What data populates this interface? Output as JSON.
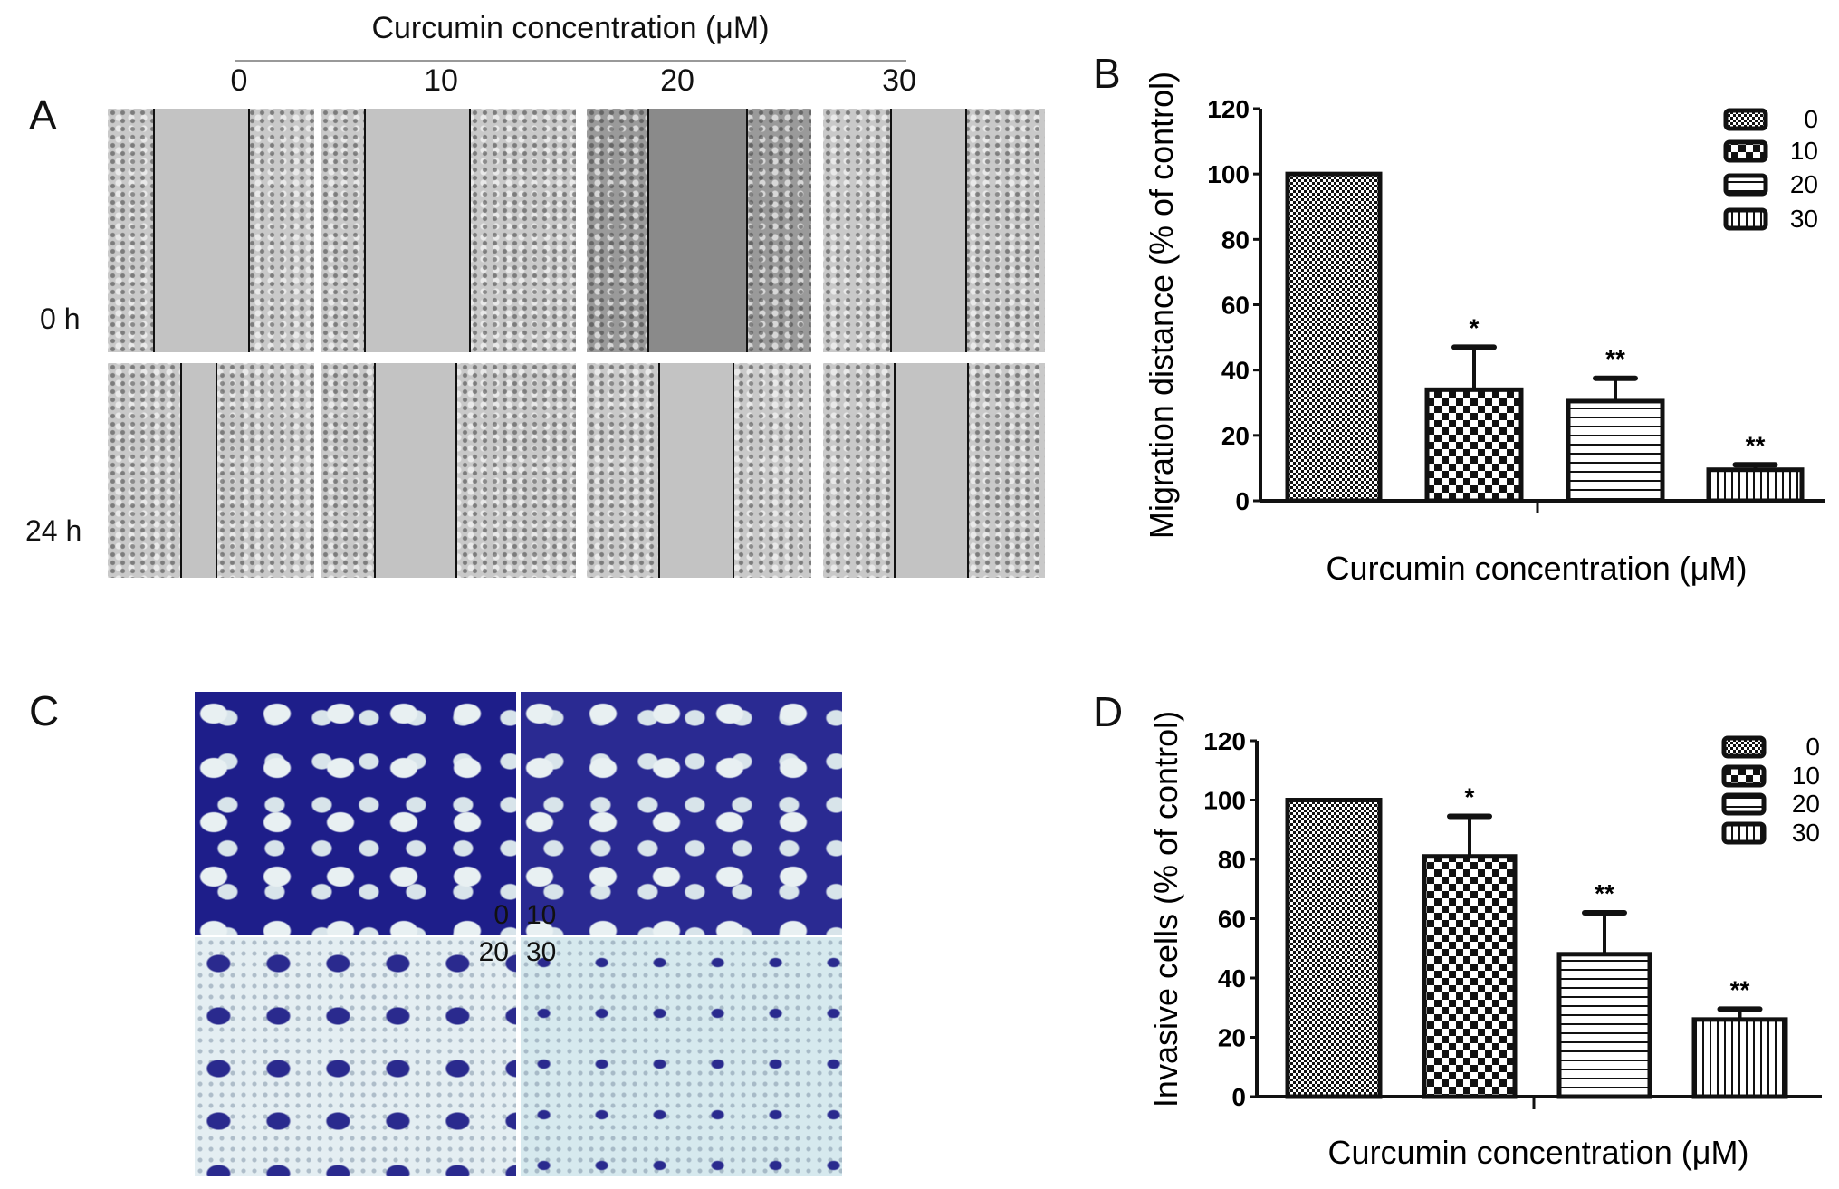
{
  "panel_a": {
    "letter": "A",
    "title": "Curcumin concentration (μM)",
    "columns": [
      "0",
      "10",
      "20",
      "30"
    ],
    "rows": [
      "0 h",
      "24 h"
    ]
  },
  "panel_c": {
    "letter": "C",
    "labels": [
      "0",
      "10",
      "20",
      "30"
    ]
  },
  "chart_data": [
    {
      "panel": "B",
      "type": "bar",
      "categories": [
        "0",
        "10",
        "20",
        "30"
      ],
      "values": [
        100,
        34,
        30.5,
        9.5
      ],
      "error_upper": [
        100,
        47,
        37.5,
        11
      ],
      "significance": [
        "",
        "*",
        "**",
        "**"
      ],
      "xlabel": "Curcumin concentration (μM)",
      "ylabel": "Migration distance (% of control)",
      "ylim": [
        0,
        120
      ],
      "yticks": [
        "0",
        "20",
        "40",
        "60",
        "80",
        "100",
        "120"
      ],
      "legend": [
        "0",
        "10",
        "20",
        "30"
      ],
      "legend_position": "top-right",
      "patterns": [
        "fine-checker",
        "coarse-checker",
        "horizontal-lines",
        "vertical-lines"
      ],
      "grid": false
    },
    {
      "panel": "D",
      "type": "bar",
      "categories": [
        "0",
        "10",
        "20",
        "30"
      ],
      "values": [
        100,
        81,
        48,
        26
      ],
      "error_upper": [
        100,
        94.5,
        62,
        29.5
      ],
      "significance": [
        "",
        "*",
        "**",
        "**"
      ],
      "xlabel": "Curcumin concentration (μM)",
      "ylabel": "Invasive cells (% of control)",
      "ylim": [
        0,
        120
      ],
      "yticks": [
        "0",
        "20",
        "40",
        "60",
        "80",
        "100",
        "120"
      ],
      "legend": [
        "0",
        "10",
        "20",
        "30"
      ],
      "legend_position": "top-right",
      "patterns": [
        "fine-checker",
        "coarse-checker",
        "horizontal-lines",
        "vertical-lines"
      ],
      "grid": false
    }
  ],
  "panel_b": {
    "letter": "B"
  },
  "panel_d": {
    "letter": "D"
  }
}
